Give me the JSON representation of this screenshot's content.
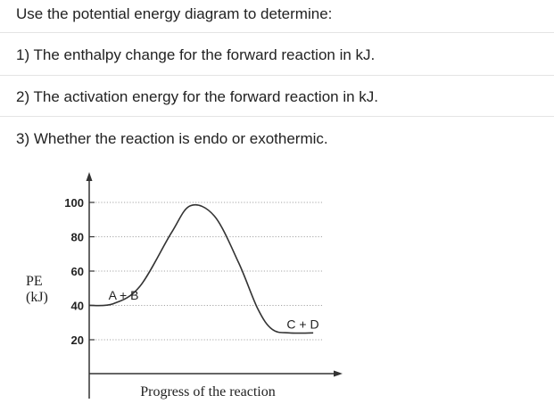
{
  "question": {
    "intro": "Use the potential energy diagram to determine:",
    "items": [
      "1) The enthalpy change for the forward reaction in kJ.",
      "2) The activation energy for the forward reaction in kJ.",
      "3) Whether the reaction is endo or exothermic."
    ]
  },
  "chart_data": {
    "type": "line",
    "title": "",
    "xlabel": "Progress of the reaction",
    "ylabel_lines": [
      "PE",
      "(kJ)"
    ],
    "yticks": [
      20,
      40,
      60,
      80,
      100
    ],
    "ylim": [
      10,
      105
    ],
    "grid": "dotted horizontal at each y tick",
    "series": [
      {
        "x": [
          0,
          0.1,
          0.21,
          0.34,
          0.42,
          0.52,
          0.62,
          0.7,
          0.76,
          0.83,
          0.93
        ],
        "y": [
          40,
          41,
          51,
          82,
          98,
          92,
          65,
          38,
          26,
          24,
          24
        ]
      }
    ],
    "annotations": [
      {
        "text": "A + B",
        "x": 0.08,
        "y": 46
      },
      {
        "text": "C + D",
        "x": 0.82,
        "y": 29
      }
    ]
  },
  "colors": {
    "curve": "#333333",
    "grid": "#888888",
    "axis": "#333333",
    "text": "#222222"
  }
}
